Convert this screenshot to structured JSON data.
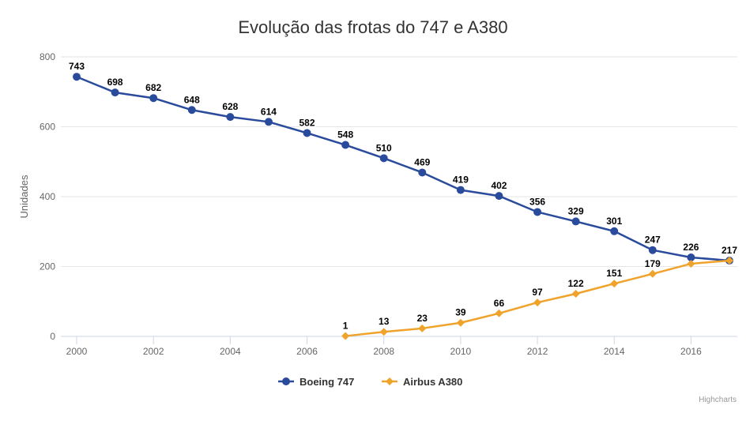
{
  "chart_data": {
    "type": "line",
    "title": "Evolução das frotas do 747 e A380",
    "xlabel": "",
    "ylabel": "Unidades",
    "x": [
      2000,
      2001,
      2002,
      2003,
      2004,
      2005,
      2006,
      2007,
      2008,
      2009,
      2010,
      2011,
      2012,
      2013,
      2014,
      2015,
      2016,
      2017
    ],
    "xticks": [
      2000,
      2002,
      2004,
      2006,
      2008,
      2010,
      2012,
      2014,
      2016
    ],
    "yticks": [
      0,
      200,
      400,
      600,
      800
    ],
    "xlim": [
      2000,
      2017
    ],
    "ylim": [
      0,
      800
    ],
    "grid": "horizontal",
    "legend": "bottom-center",
    "series": [
      {
        "name": "Boeing 747",
        "color": "#2a4b9c",
        "marker": "circle",
        "values": [
          743,
          698,
          682,
          648,
          628,
          614,
          582,
          548,
          510,
          469,
          419,
          402,
          356,
          329,
          301,
          247,
          226,
          217
        ]
      },
      {
        "name": "Airbus A380",
        "color": "#f0a32b",
        "marker": "diamond",
        "values": [
          null,
          null,
          null,
          null,
          null,
          null,
          null,
          1,
          13,
          23,
          39,
          66,
          97,
          122,
          151,
          179,
          208,
          217
        ],
        "labels": [
          null,
          null,
          null,
          null,
          null,
          null,
          null,
          "1",
          "13",
          "23",
          "39",
          "66",
          "97",
          "122",
          "151",
          "179",
          null,
          null
        ]
      }
    ]
  },
  "credits": "Highcharts"
}
